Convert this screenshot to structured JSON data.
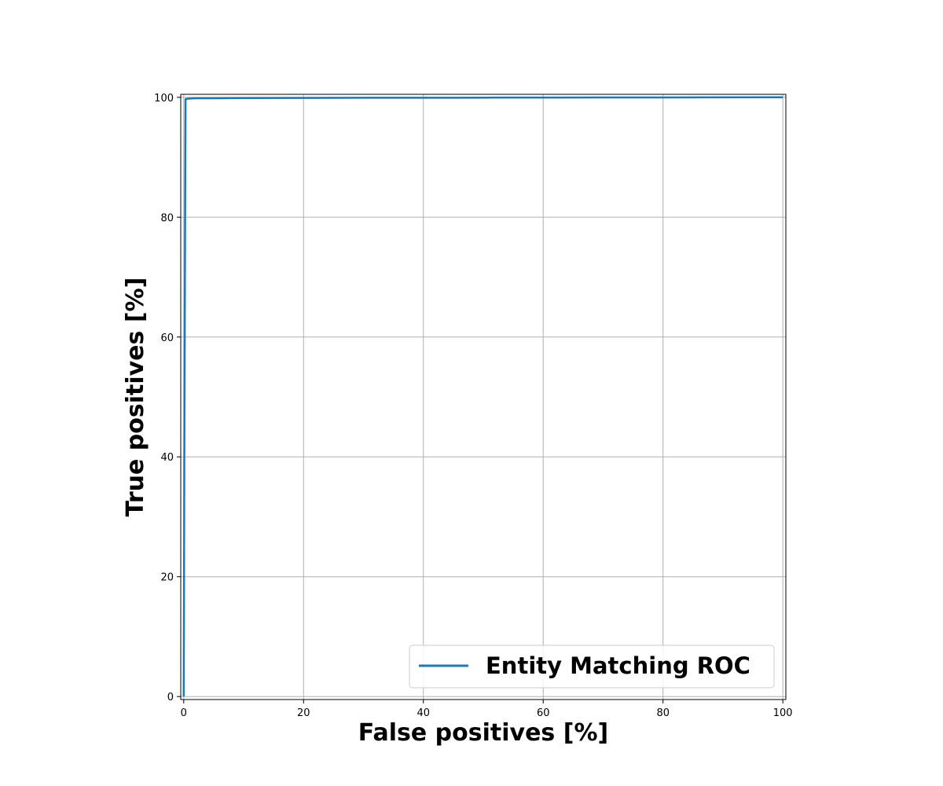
{
  "chart_data": {
    "type": "line",
    "xlabel": "False positives [%]",
    "ylabel": "True positives [%]",
    "xlim": [
      -0.5,
      100.5
    ],
    "ylim": [
      -0.5,
      100.5
    ],
    "xticks": [
      0,
      20,
      40,
      60,
      80,
      100
    ],
    "yticks": [
      0,
      20,
      40,
      60,
      80,
      100
    ],
    "grid": true,
    "legend_position": "lower-right",
    "series": [
      {
        "name": "Entity Matching ROC",
        "color": "#1f77b4",
        "x": [
          0,
          0.1,
          0.3,
          0.5,
          1,
          2,
          5,
          10,
          20,
          30,
          45,
          50,
          60,
          80,
          100
        ],
        "y": [
          0,
          40,
          99.7,
          99.75,
          99.8,
          99.85,
          99.85,
          99.88,
          99.9,
          99.92,
          99.93,
          99.95,
          99.96,
          99.98,
          100
        ]
      }
    ]
  }
}
